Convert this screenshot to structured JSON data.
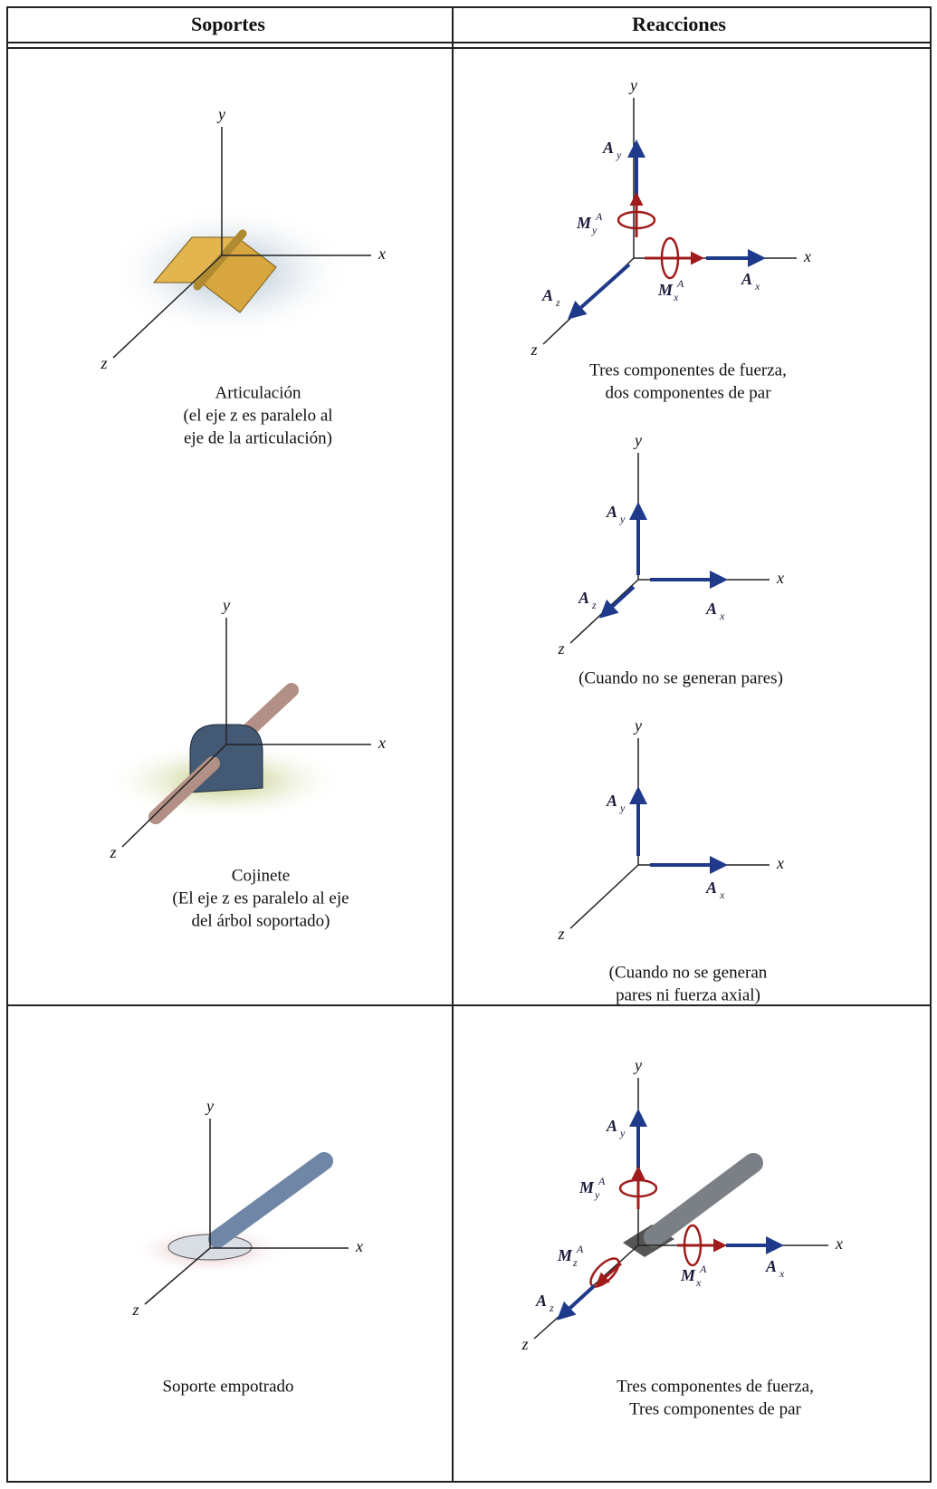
{
  "table": {
    "headers": {
      "supports": "Soportes",
      "reactions": "Reacciones"
    },
    "rows": [
      {
        "supports": [
          {
            "axes": {
              "x": "x",
              "y": "y",
              "z": "z"
            },
            "caption": [
              "Articulación",
              "(el eje z es paralelo al",
              "eje de la articulación)"
            ]
          },
          {
            "axes": {
              "x": "x",
              "y": "y",
              "z": "z"
            },
            "caption": [
              "Cojinete",
              "(El eje z es paralelo al eje",
              "del árbol soportado)"
            ]
          }
        ],
        "reactions": [
          {
            "axes": {
              "x": "x",
              "y": "y",
              "z": "z"
            },
            "labels": [
              {
                "symbol": "A",
                "sub": "y"
              },
              {
                "symbol": "M",
                "sup": "A",
                "sub": "y"
              },
              {
                "symbol": "M",
                "sup": "A",
                "sub": "x"
              },
              {
                "symbol": "A",
                "sub": "x"
              },
              {
                "symbol": "A",
                "sub": "z"
              }
            ],
            "caption": [
              "Tres componentes de fuerza,",
              "dos componentes de par"
            ]
          },
          {
            "axes": {
              "x": "x",
              "y": "y",
              "z": "z"
            },
            "labels": [
              {
                "symbol": "A",
                "sub": "y"
              },
              {
                "symbol": "A",
                "sub": "x"
              },
              {
                "symbol": "A",
                "sub": "z"
              }
            ],
            "caption": [
              "(Cuando no se generan pares)"
            ]
          },
          {
            "axes": {
              "x": "x",
              "y": "y",
              "z": "z"
            },
            "labels": [
              {
                "symbol": "A",
                "sub": "y"
              },
              {
                "symbol": "A",
                "sub": "x"
              }
            ],
            "caption": [
              "(Cuando no se generan",
              "pares ni fuerza axial)"
            ]
          }
        ]
      },
      {
        "supports": [
          {
            "axes": {
              "x": "x",
              "y": "y",
              "z": "z"
            },
            "caption": [
              "Soporte empotrado"
            ]
          }
        ],
        "reactions": [
          {
            "axes": {
              "x": "x",
              "y": "y",
              "z": "z"
            },
            "labels": [
              {
                "symbol": "A",
                "sub": "y"
              },
              {
                "symbol": "M",
                "sup": "A",
                "sub": "y"
              },
              {
                "symbol": "M",
                "sup": "A",
                "sub": "z"
              },
              {
                "symbol": "M",
                "sup": "A",
                "sub": "x"
              },
              {
                "symbol": "A",
                "sub": "x"
              },
              {
                "symbol": "A",
                "sub": "z"
              }
            ],
            "caption": [
              "Tres componentes de fuerza,",
              "Tres componentes de par"
            ]
          }
        ]
      }
    ]
  }
}
